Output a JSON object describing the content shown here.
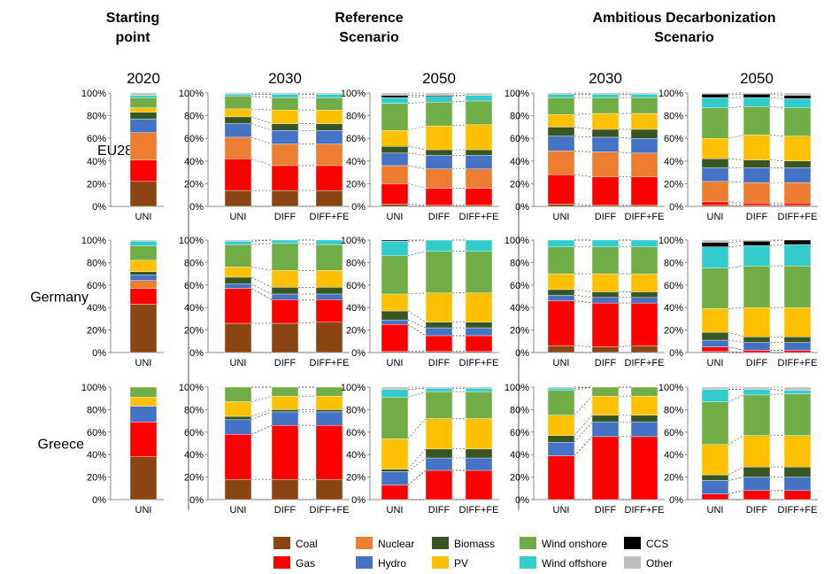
{
  "chart_data": {
    "type": "bar",
    "stacked": true,
    "headers": [
      {
        "id": "start",
        "text": [
          "Starting",
          "point"
        ]
      },
      {
        "id": "ref",
        "text": [
          "Reference",
          "Scenario"
        ]
      },
      {
        "id": "amb",
        "text": [
          "Ambitious Decarbonization",
          "Scenario"
        ]
      }
    ],
    "year_labels": {
      "g1": "2020",
      "g2": "2030",
      "g3": "2050",
      "g4": "2030",
      "g5": "2050"
    },
    "row_labels": [
      "EU28",
      "Germany",
      "Greece"
    ],
    "y_ticks": [
      "0%",
      "20%",
      "40%",
      "60%",
      "80%",
      "100%"
    ],
    "ylim": [
      0,
      100
    ],
    "categories": {
      "g1": [
        "UNI"
      ],
      "g2": [
        "UNI",
        "DIFF",
        "DIFF+FE"
      ],
      "g3": [
        "UNI",
        "DIFF",
        "DIFF+FE"
      ],
      "g4": [
        "UNI",
        "DIFF",
        "DIFF+FE"
      ],
      "g5": [
        "UNI",
        "DIFF",
        "DIFF+FE"
      ]
    },
    "series": [
      {
        "key": "coal",
        "name": "Coal",
        "color": "#8B4513"
      },
      {
        "key": "gas",
        "name": "Gas",
        "color": "#FF0000"
      },
      {
        "key": "nuclear",
        "name": "Nuclear",
        "color": "#ED7D31"
      },
      {
        "key": "hydro",
        "name": "Hydro",
        "color": "#4472C4"
      },
      {
        "key": "biomass",
        "name": "Biomass",
        "color": "#375623"
      },
      {
        "key": "pv",
        "name": "PV",
        "color": "#FFC000"
      },
      {
        "key": "wind_onshore",
        "name": "Wind onshore",
        "color": "#70AD47"
      },
      {
        "key": "wind_offshore",
        "name": "Wind offshore",
        "color": "#33CCCC"
      },
      {
        "key": "ccs",
        "name": "CCS",
        "color": "#000000"
      },
      {
        "key": "other",
        "name": "Other",
        "color": "#BFBFBF"
      }
    ],
    "panels": [
      {
        "row": "EU28",
        "group": "g1",
        "bars": [
          [
            22,
            19,
            24,
            12,
            6,
            4,
            9,
            2,
            0,
            2
          ]
        ]
      },
      {
        "row": "EU28",
        "group": "g2",
        "bars": [
          [
            14,
            28,
            19,
            12,
            6,
            7,
            11,
            2,
            0,
            1
          ],
          [
            14,
            22,
            19,
            12,
            6,
            12,
            11,
            3,
            0,
            1
          ],
          [
            14,
            22,
            19,
            12,
            6,
            12,
            11,
            3,
            0,
            1
          ]
        ]
      },
      {
        "row": "EU28",
        "group": "g3",
        "bars": [
          [
            2,
            18,
            16,
            11,
            6,
            14,
            24,
            5,
            2,
            2
          ],
          [
            1,
            15,
            17,
            12,
            5,
            21,
            21,
            5,
            1,
            2
          ],
          [
            1,
            15,
            17,
            12,
            5,
            22,
            21,
            5,
            0,
            2
          ]
        ]
      },
      {
        "row": "EU28",
        "group": "g4",
        "bars": [
          [
            2,
            26,
            21,
            13,
            8,
            11,
            15,
            3,
            0,
            1
          ],
          [
            1,
            25,
            22,
            13,
            7,
            14,
            14,
            3,
            0,
            1
          ],
          [
            1,
            25,
            21,
            13,
            8,
            14,
            14,
            3,
            0,
            1
          ]
        ]
      },
      {
        "row": "EU28",
        "group": "g5",
        "bars": [
          [
            1,
            3,
            18,
            12,
            8,
            18,
            27,
            9,
            3,
            1
          ],
          [
            1,
            2,
            18,
            13,
            7,
            22,
            25,
            8,
            3,
            1
          ],
          [
            1,
            2,
            18,
            13,
            6,
            22,
            25,
            8,
            3,
            2
          ]
        ]
      },
      {
        "row": "Germany",
        "group": "g1",
        "bars": [
          [
            43,
            14,
            7,
            5,
            3,
            10,
            13,
            4,
            0,
            1
          ]
        ]
      },
      {
        "row": "Germany",
        "group": "g2",
        "bars": [
          [
            26,
            31,
            0,
            4,
            6,
            9,
            20,
            3,
            0,
            1
          ],
          [
            26,
            21,
            0,
            5,
            6,
            15,
            24,
            3,
            0,
            0
          ],
          [
            27,
            20,
            0,
            5,
            6,
            15,
            23,
            4,
            0,
            0
          ]
        ]
      },
      {
        "row": "Germany",
        "group": "g3",
        "bars": [
          [
            1,
            24,
            0,
            4,
            8,
            15,
            34,
            13,
            1,
            0
          ],
          [
            1,
            14,
            0,
            7,
            5,
            26,
            37,
            10,
            0,
            0
          ],
          [
            1,
            14,
            0,
            7,
            5,
            26,
            37,
            10,
            0,
            0
          ]
        ]
      },
      {
        "row": "Germany",
        "group": "g4",
        "bars": [
          [
            6,
            40,
            0,
            5,
            5,
            14,
            24,
            6,
            0,
            0
          ],
          [
            5,
            39,
            0,
            5,
            5,
            16,
            24,
            6,
            0,
            0
          ],
          [
            6,
            38,
            0,
            5,
            5,
            16,
            24,
            6,
            0,
            0
          ]
        ]
      },
      {
        "row": "Germany",
        "group": "g5",
        "bars": [
          [
            1,
            4,
            0,
            6,
            7,
            21,
            36,
            19,
            4,
            2
          ],
          [
            0,
            2,
            0,
            7,
            5,
            26,
            37,
            18,
            4,
            1
          ],
          [
            0,
            2,
            0,
            7,
            5,
            26,
            37,
            19,
            4,
            0
          ]
        ]
      },
      {
        "row": "Greece",
        "group": "g1",
        "bars": [
          [
            38,
            31,
            0,
            14,
            0,
            8,
            9,
            0,
            0,
            0
          ]
        ]
      },
      {
        "row": "Greece",
        "group": "g2",
        "bars": [
          [
            18,
            40,
            0,
            13,
            3,
            13,
            13,
            0,
            0,
            0
          ],
          [
            18,
            48,
            0,
            12,
            2,
            12,
            8,
            0,
            0,
            0
          ],
          [
            18,
            48,
            0,
            12,
            2,
            12,
            8,
            0,
            0,
            0
          ]
        ]
      },
      {
        "row": "Greece",
        "group": "g3",
        "bars": [
          [
            0,
            13,
            0,
            12,
            2,
            27,
            37,
            7,
            0,
            2
          ],
          [
            0,
            26,
            0,
            11,
            8,
            27,
            24,
            3,
            0,
            1
          ],
          [
            0,
            26,
            0,
            11,
            8,
            27,
            24,
            3,
            0,
            1
          ]
        ]
      },
      {
        "row": "Greece",
        "group": "g4",
        "bars": [
          [
            0,
            39,
            0,
            12,
            6,
            18,
            22,
            2,
            0,
            1
          ],
          [
            0,
            56,
            0,
            13,
            6,
            17,
            8,
            0,
            0,
            0
          ],
          [
            0,
            56,
            0,
            13,
            6,
            17,
            8,
            0,
            0,
            0
          ]
        ]
      },
      {
        "row": "Greece",
        "group": "g5",
        "bars": [
          [
            0,
            5,
            0,
            12,
            5,
            27,
            38,
            11,
            0,
            2
          ],
          [
            0,
            8,
            0,
            12,
            9,
            28,
            36,
            5,
            0,
            2
          ],
          [
            0,
            8,
            0,
            12,
            9,
            28,
            37,
            3,
            0,
            3
          ]
        ]
      }
    ]
  }
}
